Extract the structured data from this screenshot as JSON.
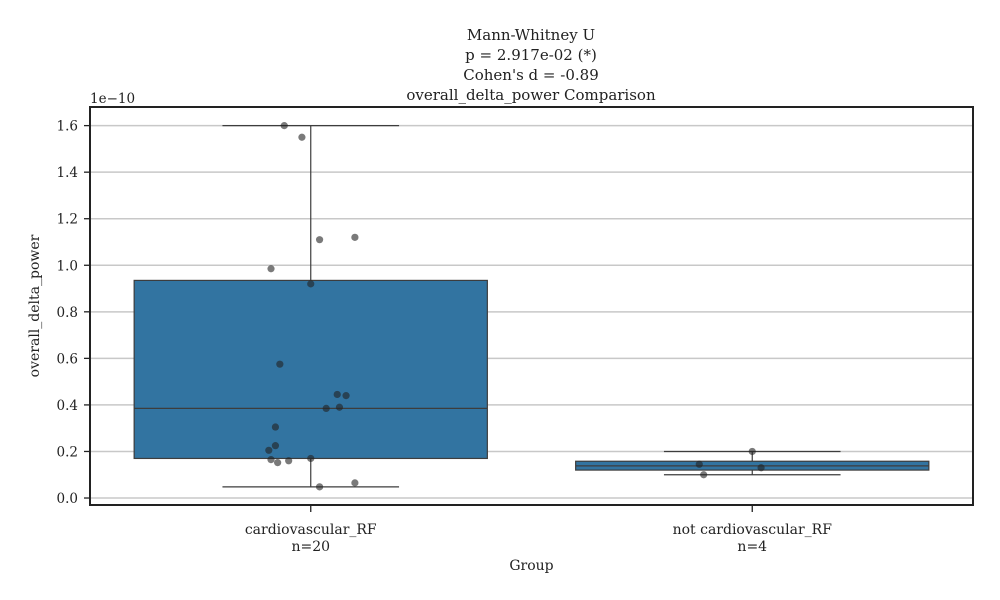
{
  "chart_data": {
    "type": "box",
    "title_lines": [
      "Mann-Whitney U",
      "p = 2.917e-02 (*)",
      "Cohen's d = -0.89",
      "overall_delta_power Comparison"
    ],
    "xlabel": "Group",
    "ylabel": "overall_delta_power",
    "y_offset_text": "1e−10",
    "ylim": [
      -0.03,
      1.68
    ],
    "yticks": [
      0.0,
      0.2,
      0.4,
      0.6,
      0.8,
      1.0,
      1.2,
      1.4,
      1.6
    ],
    "ytick_labels": [
      "0.0",
      "0.2",
      "0.4",
      "0.6",
      "0.8",
      "1.0",
      "1.2",
      "1.4",
      "1.6"
    ],
    "grid": "horizontal",
    "box_color": "#3274a1",
    "point_color": "#222222",
    "groups": [
      {
        "name": "cardiovascular_RF",
        "n_label": "n=20",
        "q1": 0.17,
        "median": 0.385,
        "q3": 0.935,
        "whisker_low": 0.048,
        "whisker_high": 1.6,
        "points": [
          {
            "x_jitter": -0.06,
            "y": 1.6
          },
          {
            "x_jitter": -0.02,
            "y": 1.55
          },
          {
            "x_jitter": 0.02,
            "y": 1.11
          },
          {
            "x_jitter": 0.1,
            "y": 1.12
          },
          {
            "x_jitter": -0.09,
            "y": 0.985
          },
          {
            "x_jitter": 0.0,
            "y": 0.92
          },
          {
            "x_jitter": -0.07,
            "y": 0.575
          },
          {
            "x_jitter": 0.06,
            "y": 0.445
          },
          {
            "x_jitter": 0.08,
            "y": 0.44
          },
          {
            "x_jitter": 0.035,
            "y": 0.385
          },
          {
            "x_jitter": 0.065,
            "y": 0.39
          },
          {
            "x_jitter": -0.08,
            "y": 0.305
          },
          {
            "x_jitter": -0.08,
            "y": 0.225
          },
          {
            "x_jitter": -0.095,
            "y": 0.205
          },
          {
            "x_jitter": 0.0,
            "y": 0.17
          },
          {
            "x_jitter": -0.09,
            "y": 0.165
          },
          {
            "x_jitter": -0.075,
            "y": 0.152
          },
          {
            "x_jitter": -0.05,
            "y": 0.16
          },
          {
            "x_jitter": 0.02,
            "y": 0.048
          },
          {
            "x_jitter": 0.1,
            "y": 0.065
          }
        ]
      },
      {
        "name": "not cardiovascular_RF",
        "n_label": "n=4",
        "q1": 0.12,
        "median": 0.138,
        "q3": 0.158,
        "whisker_low": 0.1,
        "whisker_high": 0.2,
        "points": [
          {
            "x_jitter": -0.12,
            "y": 0.145
          },
          {
            "x_jitter": 0.0,
            "y": 0.2
          },
          {
            "x_jitter": 0.02,
            "y": 0.13
          },
          {
            "x_jitter": -0.11,
            "y": 0.1
          }
        ]
      }
    ]
  }
}
